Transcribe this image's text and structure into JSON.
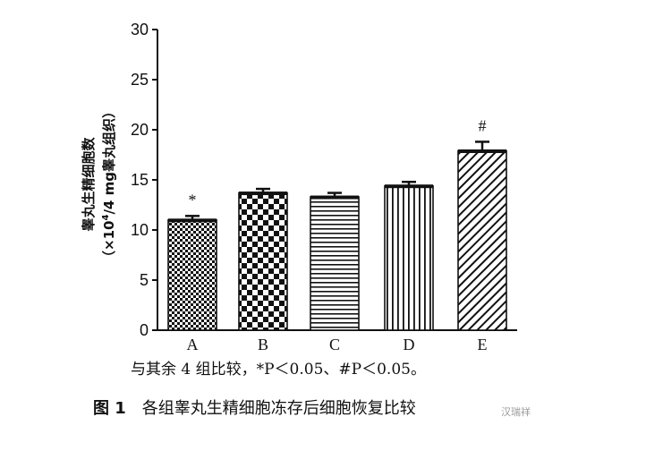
{
  "chart_data": {
    "type": "bar",
    "categories": [
      "A",
      "B",
      "C",
      "D",
      "E"
    ],
    "values": [
      11.0,
      13.7,
      13.3,
      14.4,
      17.9
    ],
    "errors": [
      0.4,
      0.4,
      0.4,
      0.4,
      0.9
    ],
    "annotations": [
      "*",
      "",
      "",
      "",
      "#"
    ],
    "bar_patterns": [
      "small-checker",
      "large-checker",
      "horizontal-lines",
      "vertical-lines",
      "diagonal-lines"
    ],
    "ylabel_line1": "睾丸生精细胞数",
    "ylabel_line2_prefix": "（×10",
    "ylabel_line2_sup": "4",
    "ylabel_line2_suffix": "/4 mg睾丸组织）",
    "xlabel": "",
    "ylim": [
      0,
      30
    ],
    "yticks": [
      0,
      5,
      10,
      15,
      20,
      25,
      30
    ],
    "grid": false,
    "colors": {
      "ink": "#111111",
      "background": "#ffffff"
    }
  },
  "footnote": {
    "text": "与其余 4 组比较，*P＜0.05、#P＜0.05。"
  },
  "figure_title": {
    "label": "图 1",
    "text": "各组睾丸生精细胞冻存后细胞恢复比较"
  },
  "watermark": {
    "text": "汉瑞祥"
  }
}
